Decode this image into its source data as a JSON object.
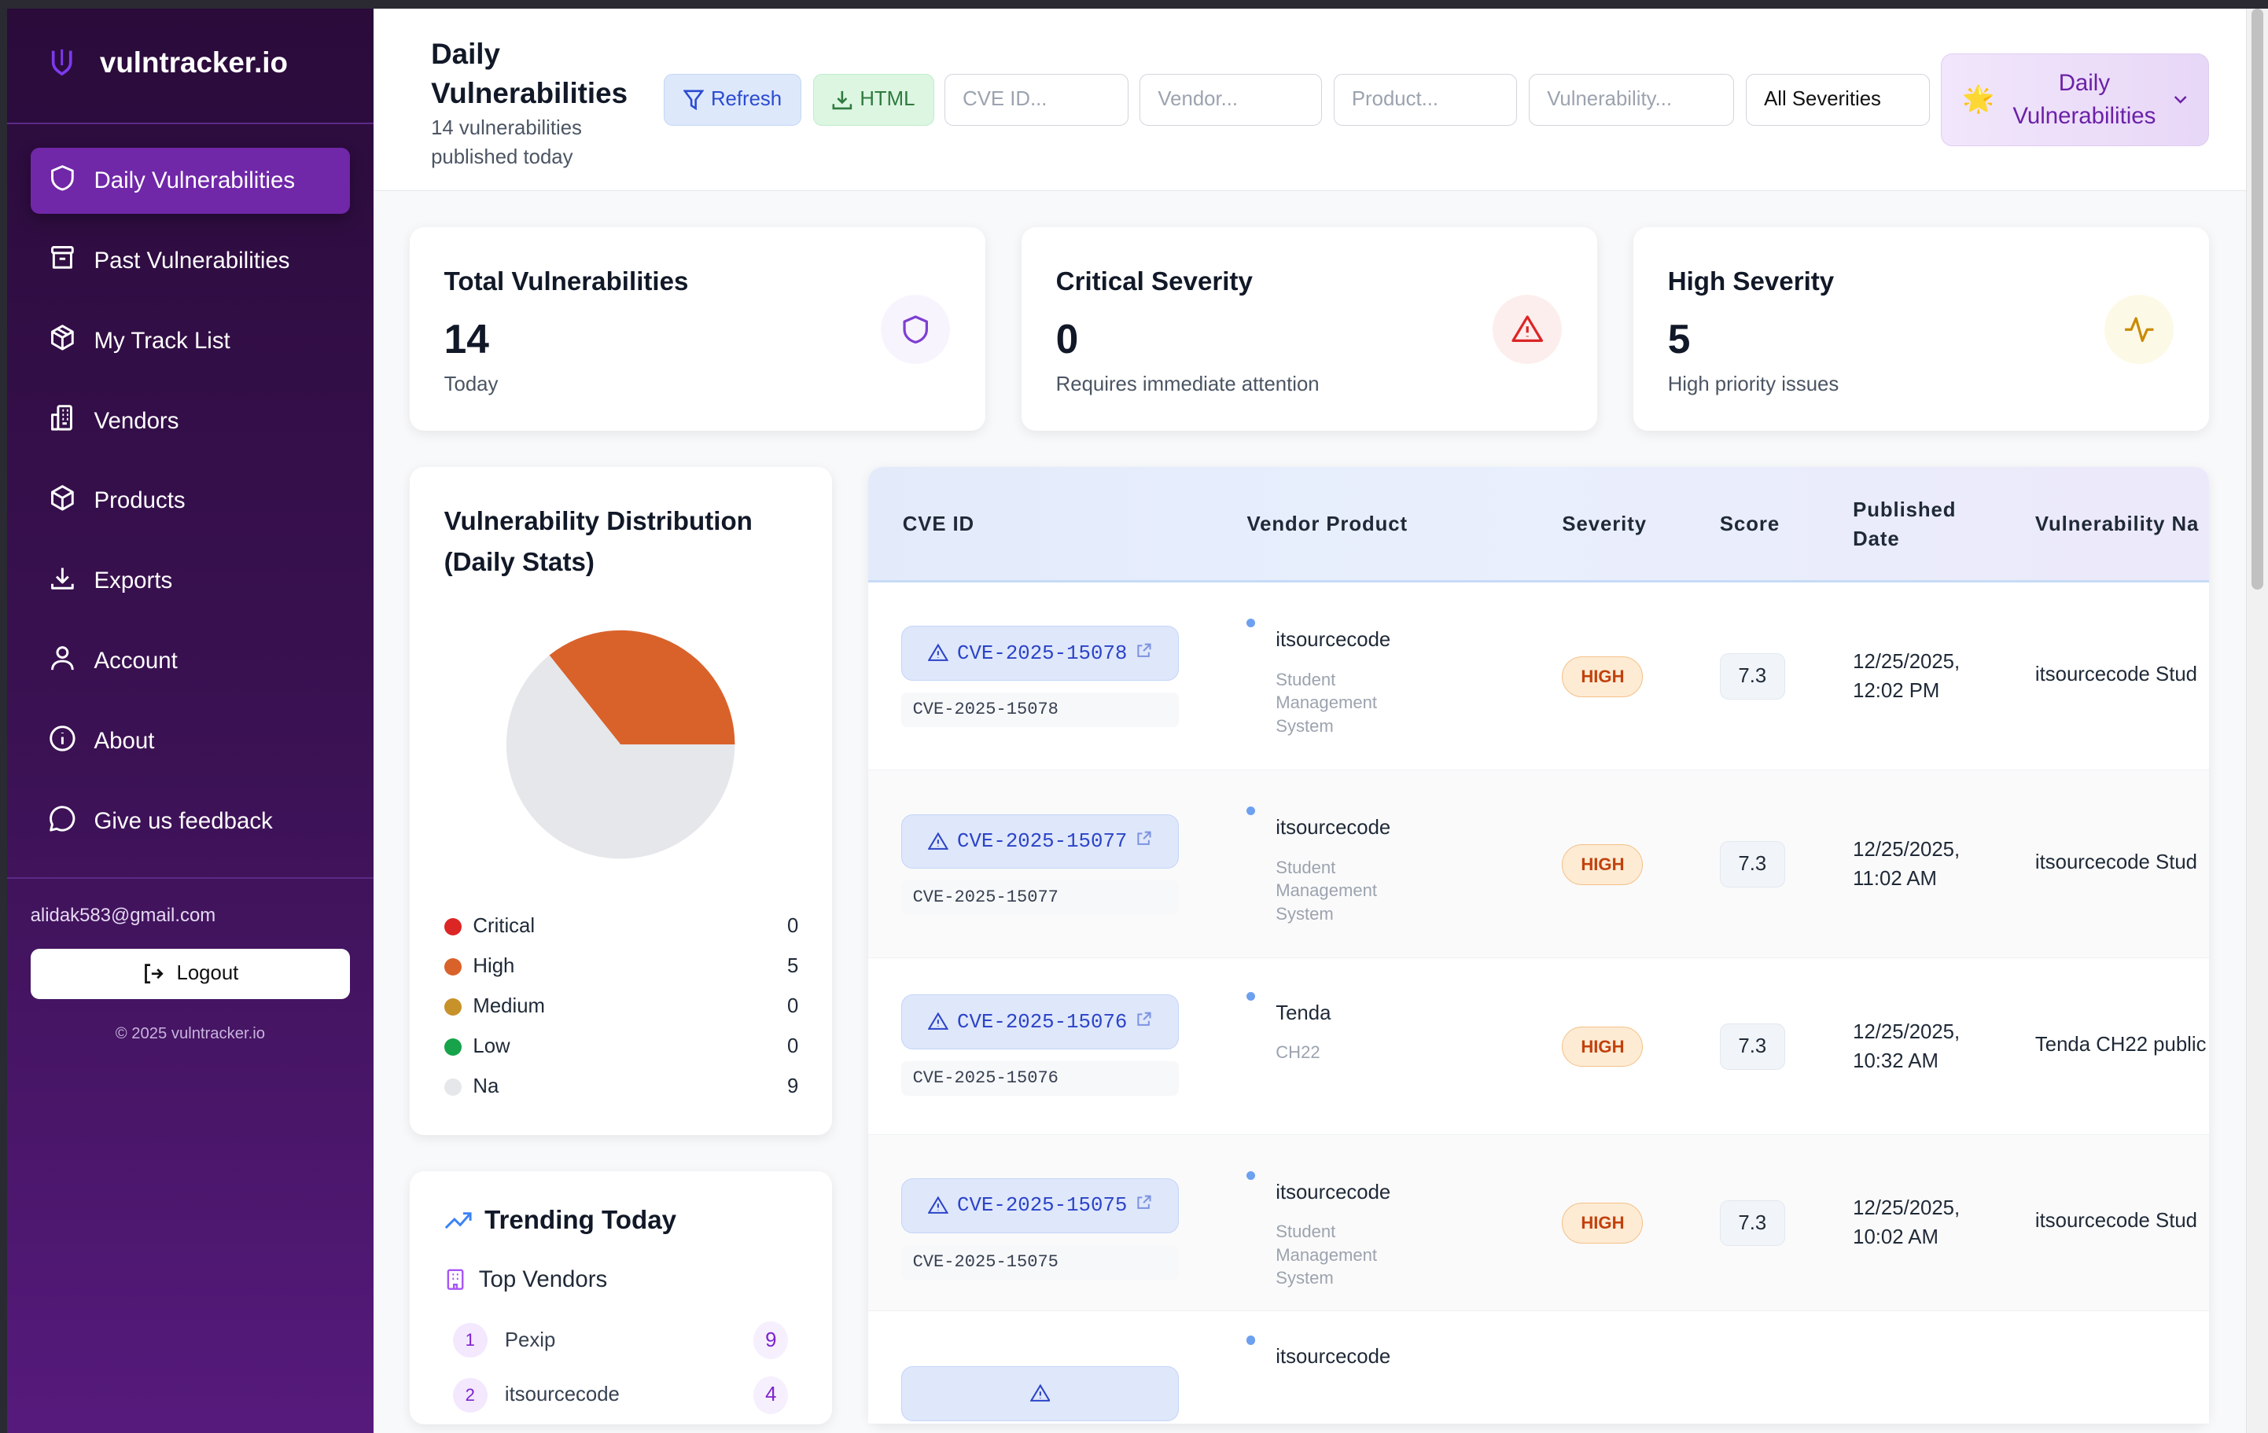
{
  "app": {
    "name": "vultracker_placeholder"
  },
  "sidebar": {
    "logo": "vulntracker.io",
    "items": [
      {
        "label": "Daily Vulnerabilities",
        "icon": "shield-icon",
        "active": true
      },
      {
        "label": "Past Vulnerabilities",
        "icon": "archive-icon"
      },
      {
        "label": "My Track List",
        "icon": "package-icon"
      },
      {
        "label": "Vendors",
        "icon": "building-icon"
      },
      {
        "label": "Products",
        "icon": "box-icon"
      },
      {
        "label": "Exports",
        "icon": "download-icon"
      },
      {
        "label": "Account",
        "icon": "user-icon"
      },
      {
        "label": "About",
        "icon": "info-icon"
      },
      {
        "label": "Give us feedback",
        "icon": "message-icon"
      }
    ],
    "email": "alidak583@gmail.com",
    "logout": "Logout",
    "copyright": "© 2025 vulntracker.io"
  },
  "header": {
    "title": "Daily Vulnerabilities",
    "subtitle": "14 vulnerabilities published today",
    "refresh": "Refresh",
    "html": "HTML",
    "filters": {
      "cve": "CVE ID...",
      "vendor": "Vendor...",
      "product": "Product...",
      "vulnerability": "Vulnerability...",
      "severity": "All Severities"
    },
    "mode": "Daily Vulnerabilities",
    "mode_icon": "🌟"
  },
  "stats": [
    {
      "title": "Total Vulnerabilities",
      "value": "14",
      "sub": "Today",
      "icon": "shield-icon",
      "color": "#7e3fd1"
    },
    {
      "title": "Critical Severity",
      "value": "0",
      "sub": "Requires immediate attention",
      "icon": "alert-triangle-icon",
      "color": "#dc2626"
    },
    {
      "title": "High Severity",
      "value": "5",
      "sub": "High priority issues",
      "icon": "activity-icon",
      "color": "#ca8a04"
    }
  ],
  "distribution": {
    "title": "Vulnerability Distribution (Daily Stats)",
    "chart_data": {
      "type": "pie",
      "categories": [
        "Critical",
        "High",
        "Medium",
        "Low",
        "Na"
      ],
      "values": [
        0,
        5,
        0,
        0,
        9
      ],
      "colors": [
        "#dc2626",
        "#d9622b",
        "#c8922a",
        "#16a34a",
        "#e5e7eb"
      ]
    }
  },
  "trending": {
    "title": "Trending Today",
    "subtitle": "Top Vendors",
    "vendors": [
      {
        "rank": "1",
        "name": "Pexip",
        "count": "9"
      },
      {
        "rank": "2",
        "name": "itsourcecode",
        "count": "4"
      }
    ]
  },
  "table": {
    "headers": [
      "CVE ID",
      "Vendor Product",
      "Severity",
      "Score",
      "Published Date",
      "Vulnerability Na"
    ],
    "rows": [
      {
        "cve": "CVE-2025-15078",
        "vendor": "itsourcecode",
        "product": "Student Management System",
        "severity": "HIGH",
        "score": "7.3",
        "date": "12/25/2025,",
        "time": "12:02 PM",
        "name": "itsourcecode Stud"
      },
      {
        "cve": "CVE-2025-15077",
        "vendor": "itsourcecode",
        "product": "Student Management System",
        "severity": "HIGH",
        "score": "7.3",
        "date": "12/25/2025,",
        "time": "11:02 AM",
        "name": "itsourcecode Stud"
      },
      {
        "cve": "CVE-2025-15076",
        "vendor": "Tenda",
        "product": "CH22",
        "severity": "HIGH",
        "score": "7.3",
        "date": "12/25/2025,",
        "time": "10:32 AM",
        "name": "Tenda CH22 public"
      },
      {
        "cve": "CVE-2025-15075",
        "vendor": "itsourcecode",
        "product": "Student Management System",
        "severity": "HIGH",
        "score": "7.3",
        "date": "12/25/2025,",
        "time": "10:02 AM",
        "name": "itsourcecode Stud"
      },
      {
        "vendor": "itsourcecode"
      }
    ]
  }
}
